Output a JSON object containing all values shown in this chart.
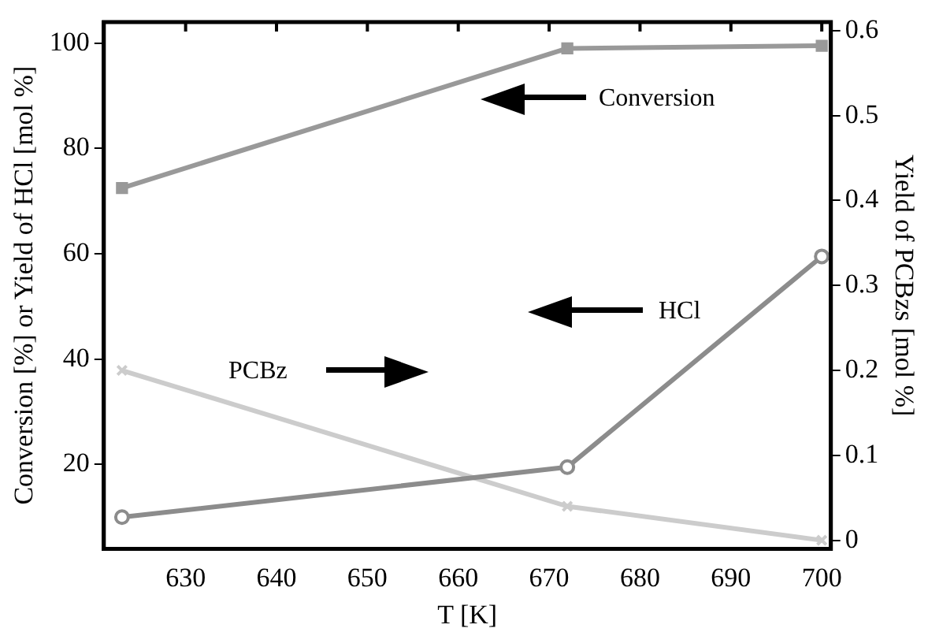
{
  "chart_data": {
    "type": "line",
    "xlabel": "T [K]",
    "ylabel": "Conversion [%] or Yield of HCl [mol %]",
    "y2label": "Yield of PCBzs [mol %]",
    "xlim": [
      621,
      701
    ],
    "xticks": [
      630,
      640,
      650,
      660,
      670,
      680,
      690,
      700
    ],
    "ylim": [
      4,
      104
    ],
    "yticks": [
      20,
      40,
      60,
      80,
      100
    ],
    "y2lim": [
      -0.01,
      0.61
    ],
    "y2ticks": [
      0,
      0.1,
      0.2,
      0.3,
      0.4,
      0.5,
      0.6
    ],
    "grid": false,
    "legend": false,
    "line_style": "solid",
    "series": [
      {
        "name": "Conversion",
        "color": "#999999",
        "marker": "square",
        "x": [
          623,
          672,
          700
        ],
        "values": [
          72.5,
          99,
          99.5
        ]
      },
      {
        "name": "HCl",
        "color": "#8c8c8c",
        "marker": "circle",
        "x": [
          623,
          672,
          700
        ],
        "values": [
          10,
          19.5,
          59.5
        ]
      },
      {
        "name": "PCBz",
        "color": "#cccccc",
        "marker": "cross",
        "axis": "y2",
        "x": [
          623,
          672,
          700
        ],
        "values": [
          0.2,
          0.04,
          0
        ]
      }
    ]
  }
}
